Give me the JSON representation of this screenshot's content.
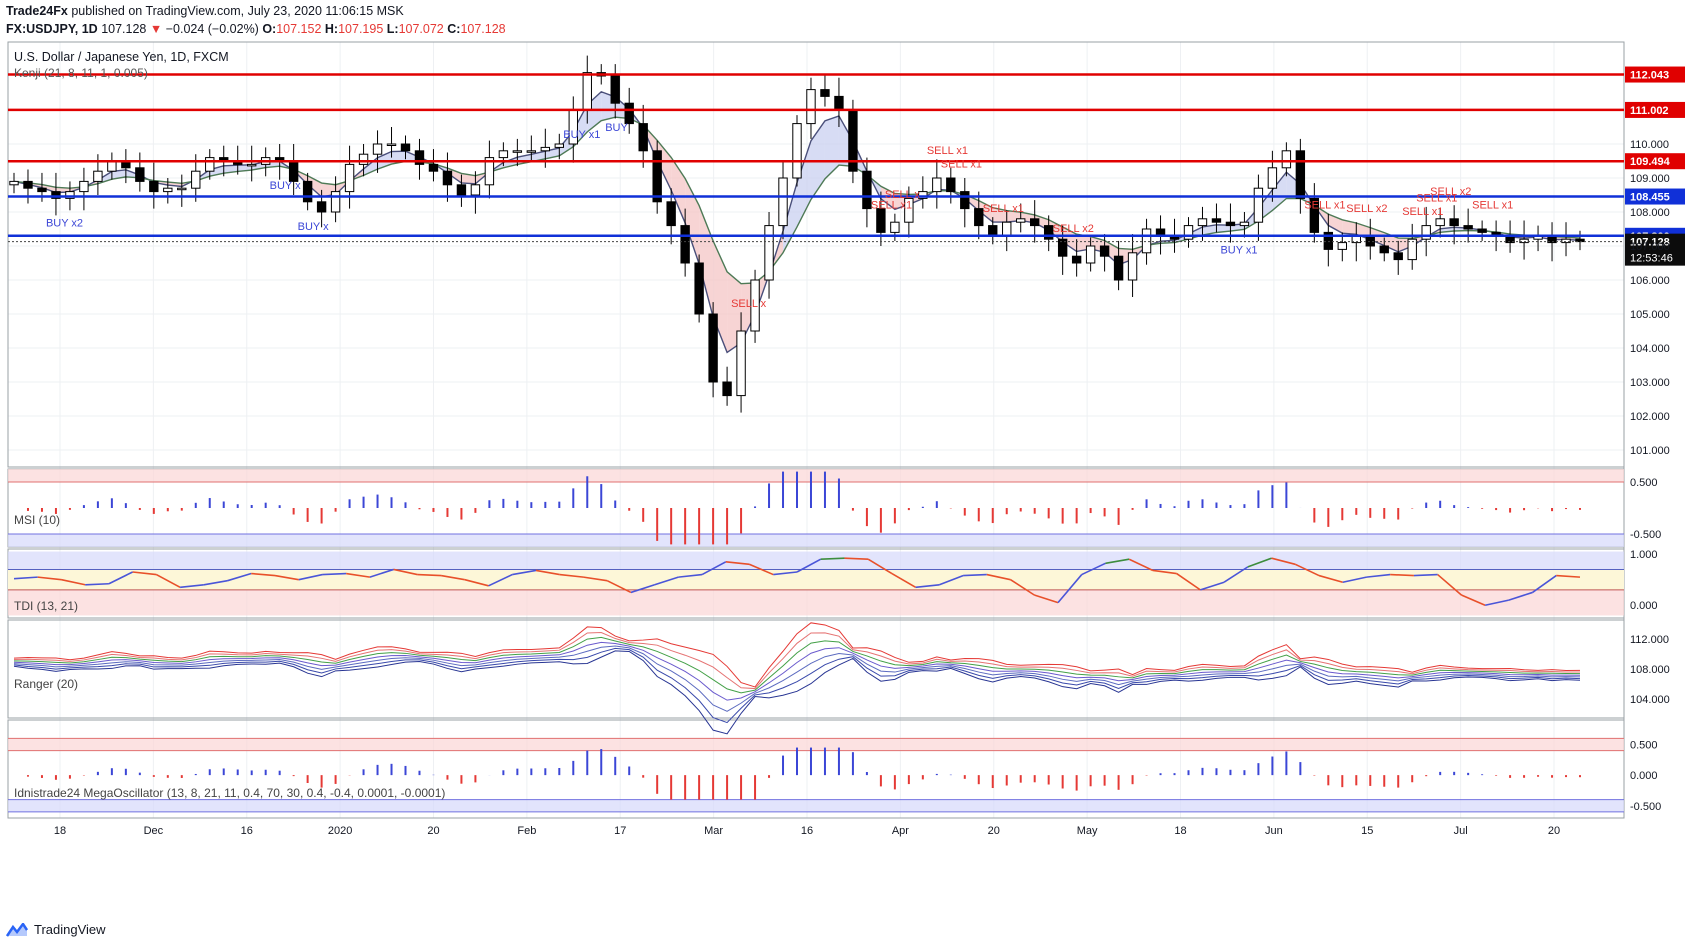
{
  "header": {
    "publisher": "Trade24Fx",
    "published_text": "published on TradingView.com, July 23, 2020 11:06:15 MSK",
    "symbol": "FX:USDJPY, 1D",
    "last": "107.128",
    "change": "−0.024 (−0.02%)",
    "o_label": "O:",
    "o_val": "107.152",
    "h_label": "H:",
    "h_val": "107.195",
    "l_label": "L:",
    "l_val": "107.072",
    "c_label": "C:",
    "c_val": "107.128"
  },
  "main": {
    "title": "U.S. Dollar / Japanese Yen, 1D, FXCM",
    "indicator": "Kenji (21, 8, 11, 1, 0.005)"
  },
  "colors": {
    "red_line": "#e00000",
    "blue_line": "#1030d8",
    "up": "#ffffff",
    "down": "#000000",
    "buy": "#3b46d6",
    "sell": "#e53935"
  },
  "chart_data": [
    {
      "type": "candlestick",
      "title": "U.S. Dollar / Japanese Yen, 1D, FXCM",
      "ylim": [
        100.5,
        113.0
      ],
      "y_ticks": [
        101,
        102,
        103,
        104,
        105,
        106,
        107,
        108,
        109,
        110
      ],
      "y_tick_labels": [
        "101.000",
        "102.000",
        "103.000",
        "104.000",
        "105.000",
        "106.000",
        "107.000",
        "108.000",
        "109.000",
        "110.000"
      ],
      "x_tick_labels": [
        "18",
        "Dec",
        "16",
        "2020",
        "20",
        "Feb",
        "17",
        "Mar",
        "16",
        "Apr",
        "20",
        "May",
        "18",
        "Jun",
        "15",
        "Jul",
        "20"
      ],
      "horizontal_levels": [
        {
          "value": 112.043,
          "label": "112.043",
          "color": "red"
        },
        {
          "value": 111.002,
          "label": "111.002",
          "color": "red"
        },
        {
          "value": 109.494,
          "label": "109.494",
          "color": "red"
        },
        {
          "value": 108.455,
          "label": "108.455",
          "color": "blue"
        },
        {
          "value": 107.3,
          "label": "107.300",
          "color": "blue"
        }
      ],
      "last_price": {
        "value": 107.128,
        "label": "107.128",
        "countdown": "12:53:46"
      },
      "close_path": [
        108.9,
        108.7,
        108.6,
        108.4,
        108.6,
        108.9,
        109.2,
        109.5,
        109.3,
        108.9,
        108.6,
        108.7,
        108.7,
        109.2,
        109.6,
        109.5,
        109.4,
        109.4,
        109.6,
        109.5,
        108.9,
        108.3,
        108.0,
        108.6,
        109.4,
        109.7,
        110.0,
        110.0,
        109.8,
        109.4,
        109.2,
        108.8,
        108.5,
        108.8,
        109.6,
        109.8,
        109.8,
        109.8,
        109.9,
        110.0,
        111.0,
        112.1,
        112.0,
        111.2,
        110.6,
        109.8,
        108.3,
        107.6,
        106.5,
        105.0,
        103.0,
        102.6,
        104.5,
        106.0,
        107.6,
        109.0,
        110.6,
        111.6,
        111.4,
        111.0,
        109.2,
        108.1,
        107.4,
        107.7,
        108.4,
        108.6,
        109.0,
        108.6,
        108.1,
        107.6,
        107.3,
        107.7,
        107.8,
        107.6,
        107.2,
        106.7,
        106.5,
        107.0,
        106.7,
        106.0,
        106.8,
        107.5,
        107.3,
        107.2,
        107.6,
        107.8,
        107.7,
        107.6,
        107.7,
        108.7,
        109.3,
        109.8,
        108.4,
        107.4,
        106.9,
        107.1,
        107.3,
        107.0,
        106.8,
        106.6,
        107.2,
        107.6,
        107.8,
        107.6,
        107.5,
        107.4,
        107.3,
        107.1,
        107.2,
        107.3,
        107.1,
        107.2,
        107.13
      ],
      "signals": [
        "BUY x2",
        "BUY x",
        "BUY x",
        "BUY x1",
        "BUY",
        "SELL x",
        "SELL x1",
        "SELL x",
        "SELL x1",
        "SELL x1",
        "SELL x1",
        "SELL x2",
        "BUY x1",
        "SELL x1",
        "SELL x2",
        "SELL x1",
        "SELL x1",
        "SELL x2",
        "SELL x1"
      ]
    },
    {
      "type": "histogram",
      "title": "MSI (10)",
      "ylim": [
        -0.75,
        0.75
      ],
      "y_tick_labels": [
        "0.500",
        "-0.500"
      ],
      "bands": [
        0.5,
        -0.5
      ]
    },
    {
      "type": "line",
      "title": "TDI (13, 21)",
      "ylim": [
        -0.25,
        1.1
      ],
      "y_tick_labels": [
        "1.000",
        "0.000"
      ],
      "series": [
        {
          "name": "TDI",
          "values": [
            0.52,
            0.55,
            0.5,
            0.4,
            0.42,
            0.65,
            0.6,
            0.35,
            0.4,
            0.48,
            0.62,
            0.58,
            0.5,
            0.6,
            0.62,
            0.55,
            0.7,
            0.6,
            0.58,
            0.5,
            0.38,
            0.6,
            0.68,
            0.6,
            0.55,
            0.48,
            0.25,
            0.4,
            0.55,
            0.6,
            0.85,
            0.8,
            0.6,
            0.65,
            0.9,
            0.92,
            0.9,
            0.62,
            0.35,
            0.4,
            0.58,
            0.6,
            0.5,
            0.2,
            0.05,
            0.6,
            0.82,
            0.9,
            0.68,
            0.62,
            0.3,
            0.45,
            0.75,
            0.92,
            0.8,
            0.58,
            0.45,
            0.55,
            0.6,
            0.58,
            0.6,
            0.2,
            0.0,
            0.1,
            0.25,
            0.58,
            0.55
          ]
        }
      ]
    },
    {
      "type": "line",
      "title": "Ranger (20)",
      "ylim": [
        101.5,
        114.5
      ],
      "y_tick_labels": [
        "112.000",
        "108.000",
        "104.000"
      ]
    },
    {
      "type": "histogram",
      "title": "Idnistrade24 MegaOscillator (13, 8, 21, 11, 0.4, 70, 30, 0.4, -0.4, 0.0001, -0.0001)",
      "ylim": [
        -0.7,
        0.9
      ],
      "y_tick_labels": [
        "0.500",
        "0.000",
        "-0.500"
      ],
      "bands": [
        0.6,
        0.4,
        -0.4,
        -0.6
      ]
    }
  ],
  "footer": {
    "brand": "TradingView"
  }
}
